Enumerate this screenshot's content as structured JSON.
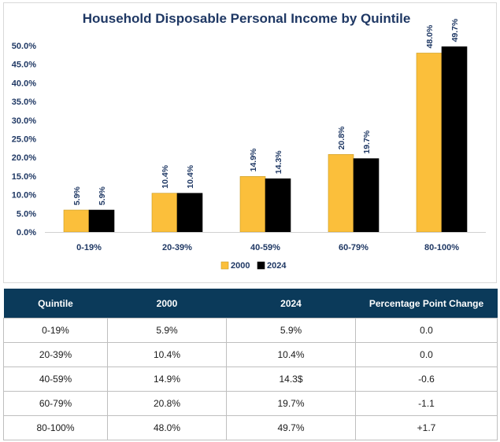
{
  "chart_data": {
    "type": "bar",
    "title": "Household Disposable Personal Income by Quintile",
    "categories": [
      "0-19%",
      "20-39%",
      "40-59%",
      "60-79%",
      "80-100%"
    ],
    "series": [
      {
        "name": "2000",
        "color": "#fbbf3b",
        "values": [
          5.9,
          10.4,
          14.9,
          20.8,
          48.0
        ],
        "labels": [
          "5.9%",
          "10.4%",
          "14.9%",
          "20.8%",
          "48.0%"
        ]
      },
      {
        "name": "2024",
        "color": "#000000",
        "values": [
          5.9,
          10.4,
          14.3,
          19.7,
          49.7
        ],
        "labels": [
          "5.9%",
          "10.4%",
          "14.3%",
          "19.7%",
          "49.7%"
        ]
      }
    ],
    "ylim": [
      0,
      50
    ],
    "yticks": [
      0,
      5,
      10,
      15,
      20,
      25,
      30,
      35,
      40,
      45,
      50
    ],
    "ytick_labels": [
      "0.0%",
      "5.0%",
      "10.0%",
      "15.0%",
      "20.0%",
      "25.0%",
      "30.0%",
      "35.0%",
      "40.0%",
      "45.0%",
      "50.0%"
    ],
    "grid": false,
    "legend": "bottom-center"
  },
  "table": {
    "headers": [
      "Quintile",
      "2000",
      "2024",
      "Percentage Point Change"
    ],
    "rows": [
      [
        "0-19%",
        "5.9%",
        "5.9%",
        "0.0"
      ],
      [
        "20-39%",
        "10.4%",
        "10.4%",
        "0.0"
      ],
      [
        "40-59%",
        "14.9%",
        "14.3$",
        "-0.6"
      ],
      [
        "60-79%",
        "20.8%",
        "19.7%",
        "-1.1"
      ],
      [
        "80-100%",
        "48.0%",
        "49.7%",
        "+1.7"
      ]
    ]
  }
}
